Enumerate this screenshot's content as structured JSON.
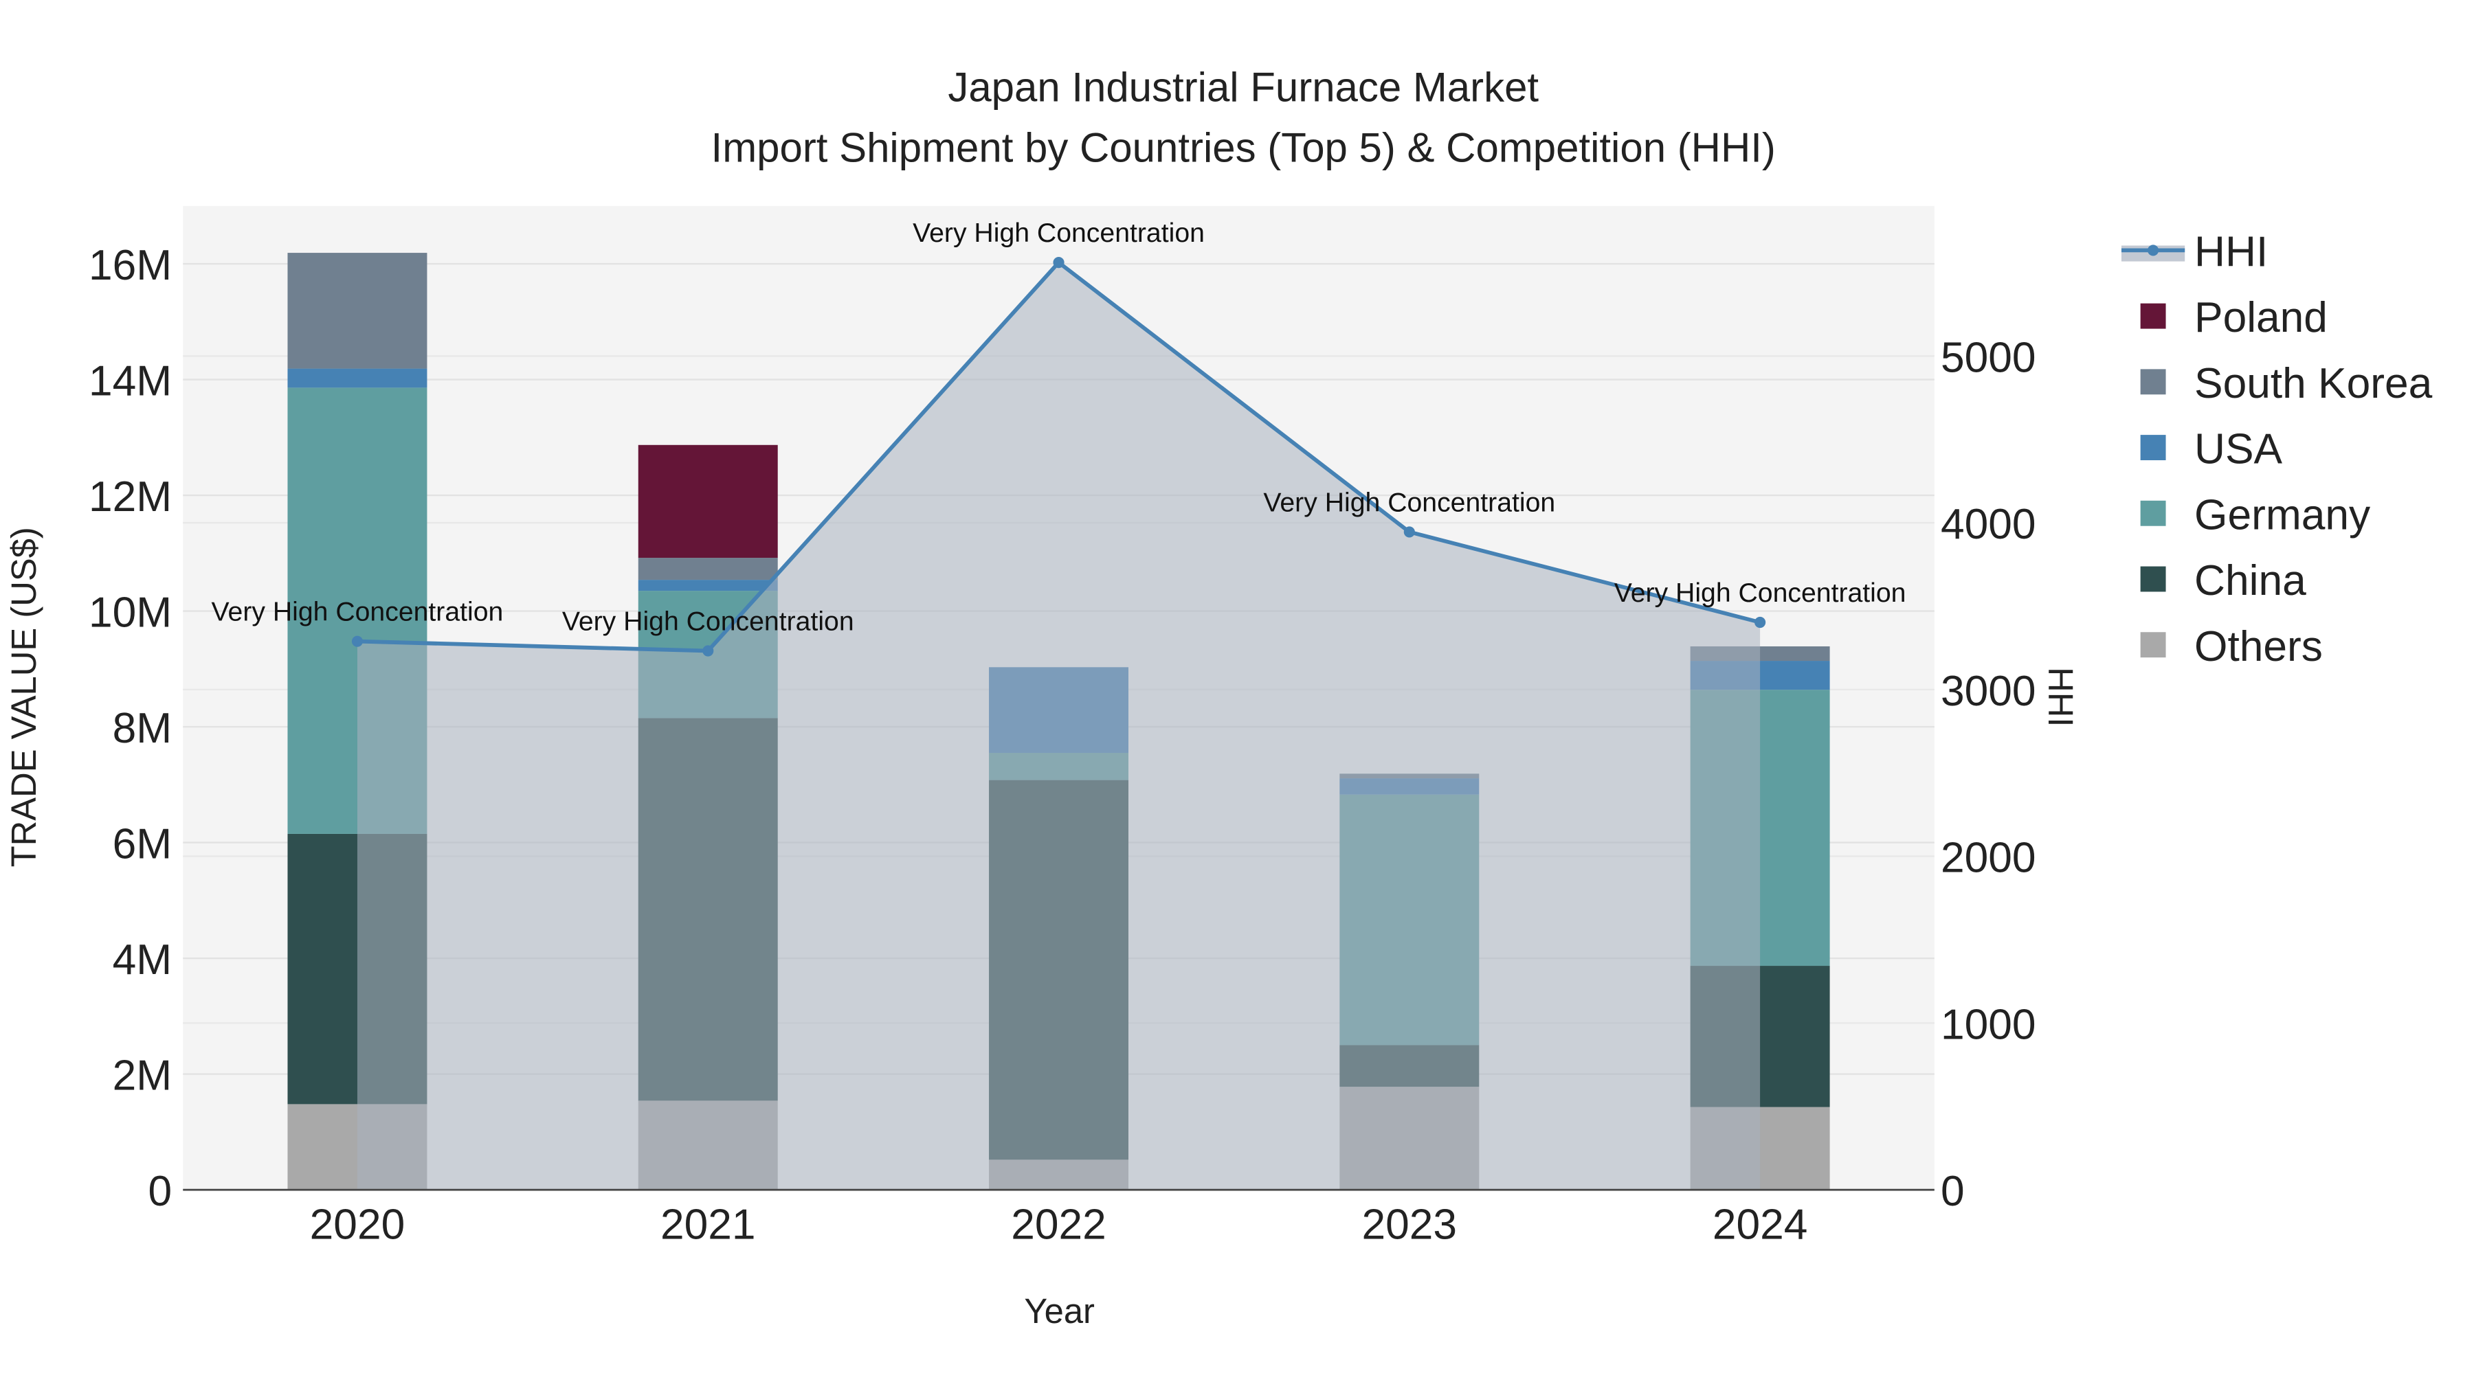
{
  "chart_data": {
    "type": "bar",
    "title": "Japan Industrial Furnace Market",
    "subtitle": "Import Shipment by Countries (Top 5) & Competition (HHI)",
    "xlabel": "Year",
    "ylabel": "TRADE VALUE (US$)",
    "y2label": "HHI",
    "categories": [
      "2020",
      "2021",
      "2022",
      "2023",
      "2024"
    ],
    "ylim": [
      0,
      17000000
    ],
    "y2lim": [
      0,
      5900
    ],
    "yticks": [
      0,
      2000000,
      4000000,
      6000000,
      8000000,
      10000000,
      12000000,
      14000000,
      16000000
    ],
    "yticklabels": [
      "0",
      "2M",
      "4M",
      "6M",
      "8M",
      "10M",
      "12M",
      "14M",
      "16M"
    ],
    "y2ticks": [
      0,
      1000,
      2000,
      3000,
      4000,
      5000
    ],
    "y2ticklabels": [
      "0",
      "1000",
      "2000",
      "3000",
      "4000",
      "5000"
    ],
    "stack_order": [
      "Others",
      "China",
      "Germany",
      "USA",
      "South Korea",
      "Poland"
    ],
    "series": [
      {
        "name": "Others",
        "color": "#a9a9a9",
        "values": [
          1480000,
          1540000,
          520000,
          1780000,
          1430000
        ]
      },
      {
        "name": "China",
        "color": "#2f4f4f",
        "values": [
          4670000,
          6610000,
          6560000,
          720000,
          2440000
        ]
      },
      {
        "name": "Germany",
        "color": "#5f9ea0",
        "values": [
          7710000,
          2200000,
          470000,
          4330000,
          4770000
        ]
      },
      {
        "name": "USA",
        "color": "#4682b4",
        "values": [
          330000,
          190000,
          1480000,
          280000,
          500000
        ]
      },
      {
        "name": "South Korea",
        "color": "#708090",
        "values": [
          2000000,
          380000,
          0,
          80000,
          250000
        ]
      },
      {
        "name": "Poland",
        "color": "#641537",
        "values": [
          0,
          1950000,
          0,
          0,
          0
        ]
      }
    ],
    "hhi": {
      "name": "HHI",
      "color": "#4682b4",
      "values": [
        3289,
        3232,
        5561,
        3945,
        3403
      ],
      "annotations": [
        "Very High Concentration",
        "Very High Concentration",
        "Very High Concentration",
        "Very High Concentration",
        "Very High Concentration"
      ]
    },
    "legend": [
      "HHI",
      "Poland",
      "South Korea",
      "USA",
      "Germany",
      "China",
      "Others"
    ],
    "legend_position": "right",
    "grid": true
  }
}
